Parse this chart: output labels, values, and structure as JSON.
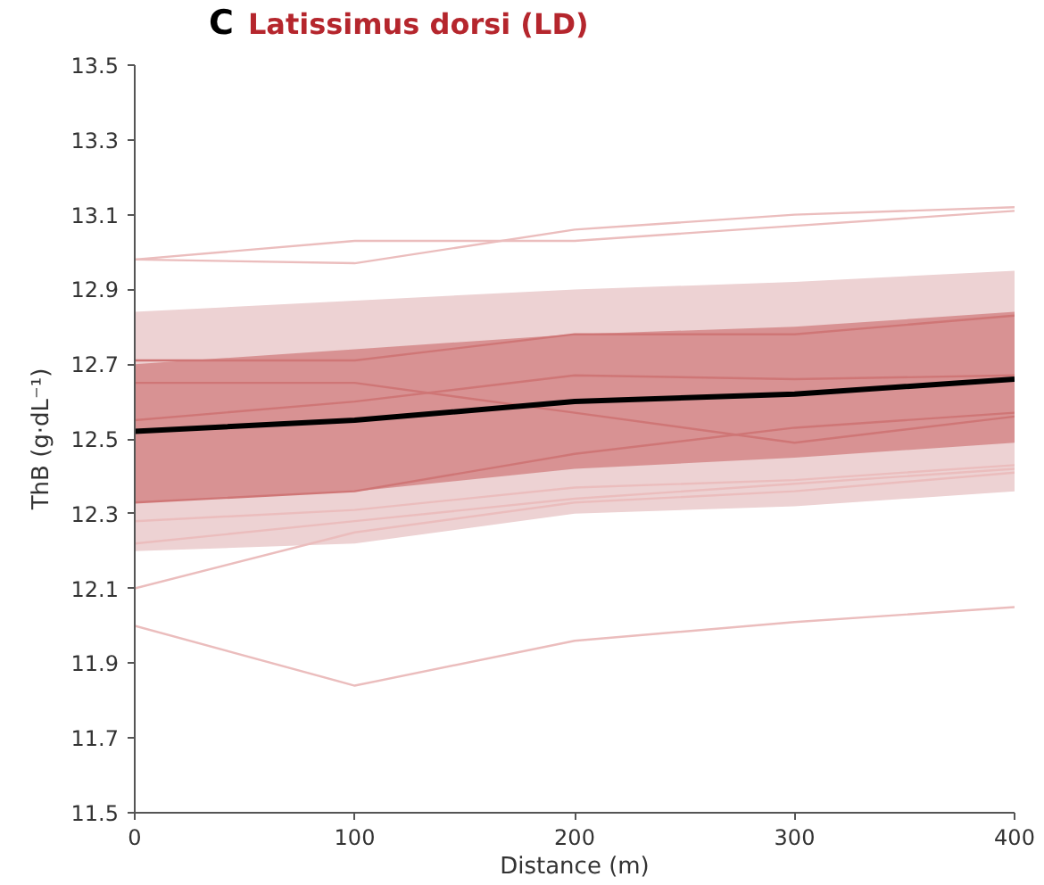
{
  "chart_data": {
    "type": "line",
    "title": "Latissimus dorsi (LD)",
    "annotations": [
      "C"
    ],
    "xlabel": "Distance (m)",
    "ylabel": "ThB (g·dL⁻¹)",
    "x": [
      0,
      100,
      200,
      300,
      400
    ],
    "xlim": [
      0,
      400
    ],
    "xticks": [
      0,
      100,
      200,
      300,
      400
    ],
    "ylim": [
      11.5,
      13.5
    ],
    "yticks": [
      11.5,
      11.7,
      11.9,
      12.1,
      12.3,
      12.5,
      12.7,
      12.9,
      13.1,
      13.3,
      13.5
    ],
    "grid": false,
    "marker": "none",
    "line_style": "solid",
    "series": [
      {
        "color": "#edd2d3",
        "values": [
          null,
          null,
          null,
          null,
          null
        ],
        "lower": [
          12.2,
          12.22,
          12.3,
          12.32,
          12.36
        ],
        "upper": [
          12.84,
          12.87,
          12.9,
          12.92,
          12.95
        ]
      },
      {
        "color": "#ebbdbd",
        "values": [
          12.98,
          12.97,
          13.06,
          13.1,
          13.12
        ]
      },
      {
        "color": "#ebbdbd",
        "values": [
          12.98,
          13.03,
          13.03,
          13.07,
          13.11
        ]
      },
      {
        "color": "#cf7676",
        "values": [
          12.71,
          12.71,
          12.78,
          12.78,
          12.83
        ]
      },
      {
        "color": "#cf7676",
        "values": [
          12.65,
          12.65,
          12.57,
          12.49,
          12.56
        ]
      },
      {
        "color": "#cf7676",
        "values": [
          12.55,
          12.6,
          12.67,
          12.66,
          12.67
        ]
      },
      {
        "color": "#cf7676",
        "values": [
          12.33,
          12.36,
          12.46,
          12.53,
          12.57
        ]
      },
      {
        "color": "#ebbdbd",
        "values": [
          12.28,
          12.31,
          12.37,
          12.39,
          12.43
        ]
      },
      {
        "color": "#ebbdbd",
        "values": [
          12.22,
          12.28,
          12.34,
          12.38,
          12.42
        ]
      },
      {
        "color": "#ebbdbd",
        "values": [
          12.1,
          12.25,
          12.33,
          12.36,
          12.41
        ]
      },
      {
        "color": "#ebbdbd",
        "values": [
          12.0,
          11.84,
          11.96,
          12.01,
          12.05
        ]
      },
      {
        "color": "#000000",
        "values": [
          12.52,
          12.55,
          12.6,
          12.62,
          12.66
        ],
        "lower": [
          12.33,
          12.36,
          12.42,
          12.45,
          12.49
        ],
        "upper": [
          12.7,
          12.74,
          12.78,
          12.8,
          12.84
        ]
      }
    ]
  }
}
